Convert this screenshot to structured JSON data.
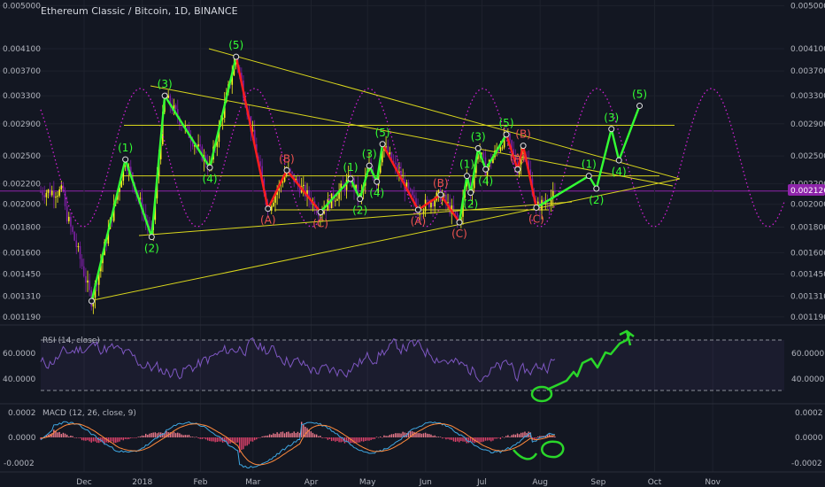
{
  "header": {
    "title": "Ethereum Classic / Bitcoin, 1D, BINANCE"
  },
  "colors": {
    "background": "#131722",
    "up_candle": "#fbf21f",
    "down_candle": "#7b1fa2",
    "price_tag": "#8e24aa",
    "wave_impulse": "#33ff33",
    "wave_corrective": "#ff1d1d",
    "label_green": "#33ff33",
    "label_red": "#ef5350",
    "trendline": "#d9d61c",
    "sine": "#d01fd6",
    "rsi_line": "#7e57c2",
    "macd_line": "#3ea6e0",
    "signal_line": "#ff8a3d",
    "hist_pos": "#ef7b8d",
    "hist_neg": "#e0426c",
    "annotation": "#2ad62a"
  },
  "price_axis": {
    "ticks": [
      "0.005000",
      "0.004100",
      "0.003700",
      "0.003300",
      "0.002900",
      "0.002500",
      "0.002200",
      "0.002000",
      "0.001800",
      "0.001600",
      "0.001450",
      "0.001310",
      "0.001190"
    ],
    "current_label": "0.002126",
    "scale": "log"
  },
  "rsi": {
    "title": "RSI (14, close)",
    "ticks": [
      "60.0000",
      "40.0000"
    ],
    "band": [
      30,
      70
    ]
  },
  "macd": {
    "title": "MACD (12, 26, close, 9)",
    "ticks": [
      "0.0002",
      "0.0000",
      "-0.0002"
    ]
  },
  "time_axis": {
    "labels": [
      "Dec",
      "2018",
      "Feb",
      "Mar",
      "Apr",
      "May",
      "Jun",
      "Jul",
      "Aug",
      "Sep",
      "Oct",
      "Nov"
    ]
  },
  "chart_data": {
    "type": "candlestick",
    "title": "Ethereum Classic / Bitcoin, 1D, BINANCE",
    "y_scale": "log",
    "ylim": [
      0.00117,
      0.00505
    ],
    "current_price": 0.002126,
    "wave_count": [
      {
        "label": "(1)",
        "date": "2017-12-23",
        "price": 0.00246,
        "color": "green"
      },
      {
        "label": "(2)",
        "date": "2018-01-06",
        "price": 0.00172,
        "color": "green"
      },
      {
        "label": "(3)",
        "date": "2018-01-13",
        "price": 0.0033,
        "color": "green"
      },
      {
        "label": "(4)",
        "date": "2018-02-06",
        "price": 0.00237,
        "color": "green"
      },
      {
        "label": "(5)",
        "date": "2018-02-20",
        "price": 0.00395,
        "color": "green"
      },
      {
        "label": "(A)",
        "date": "2018-03-09",
        "price": 0.00196,
        "color": "red"
      },
      {
        "label": "(B)",
        "date": "2018-03-19",
        "price": 0.00234,
        "color": "red"
      },
      {
        "label": "(C)",
        "date": "2018-04-06",
        "price": 0.00193,
        "color": "red"
      },
      {
        "label": "(1)",
        "date": "2018-04-22",
        "price": 0.00225,
        "color": "green"
      },
      {
        "label": "(2)",
        "date": "2018-04-27",
        "price": 0.00205,
        "color": "green"
      },
      {
        "label": "(3)",
        "date": "2018-05-02",
        "price": 0.00239,
        "color": "green"
      },
      {
        "label": "(4)",
        "date": "2018-05-06",
        "price": 0.00222,
        "color": "green"
      },
      {
        "label": "(5)",
        "date": "2018-05-09",
        "price": 0.00264,
        "color": "green"
      },
      {
        "label": "(A)",
        "date": "2018-05-28",
        "price": 0.00195,
        "color": "red"
      },
      {
        "label": "(B)",
        "date": "2018-06-09",
        "price": 0.00209,
        "color": "red"
      },
      {
        "label": "(C)",
        "date": "2018-06-19",
        "price": 0.00184,
        "color": "red"
      },
      {
        "label": "(1)",
        "date": "2018-06-23",
        "price": 0.00228,
        "color": "green"
      },
      {
        "label": "(2)",
        "date": "2018-06-25",
        "price": 0.00211,
        "color": "green"
      },
      {
        "label": "(3)",
        "date": "2018-06-29",
        "price": 0.00259,
        "color": "green"
      },
      {
        "label": "(4)",
        "date": "2018-07-03",
        "price": 0.00235,
        "color": "green"
      },
      {
        "label": "(5)",
        "date": "2018-07-14",
        "price": 0.00276,
        "color": "green"
      },
      {
        "label": "(A)",
        "date": "2018-07-20",
        "price": 0.00235,
        "color": "red"
      },
      {
        "label": "(B)",
        "date": "2018-07-23",
        "price": 0.00262,
        "color": "red"
      },
      {
        "label": "(C)",
        "date": "2018-07-30",
        "price": 0.00197,
        "color": "red"
      },
      {
        "label": "(1)",
        "date": "2018-08-27",
        "price": 0.00228,
        "color": "green"
      },
      {
        "label": "(2)",
        "date": "2018-08-31",
        "price": 0.00215,
        "color": "green"
      },
      {
        "label": "(3)",
        "date": "2018-09-08",
        "price": 0.00283,
        "color": "green"
      },
      {
        "label": "(4)",
        "date": "2018-09-12",
        "price": 0.00245,
        "color": "green"
      },
      {
        "label": "(5)",
        "date": "2018-09-23",
        "price": 0.00315,
        "color": "green"
      }
    ],
    "horizontal_levels": [
      0.00288,
      0.00228,
      0.00195
    ],
    "rsi_overbought": 70,
    "rsi_oversold": 30
  }
}
